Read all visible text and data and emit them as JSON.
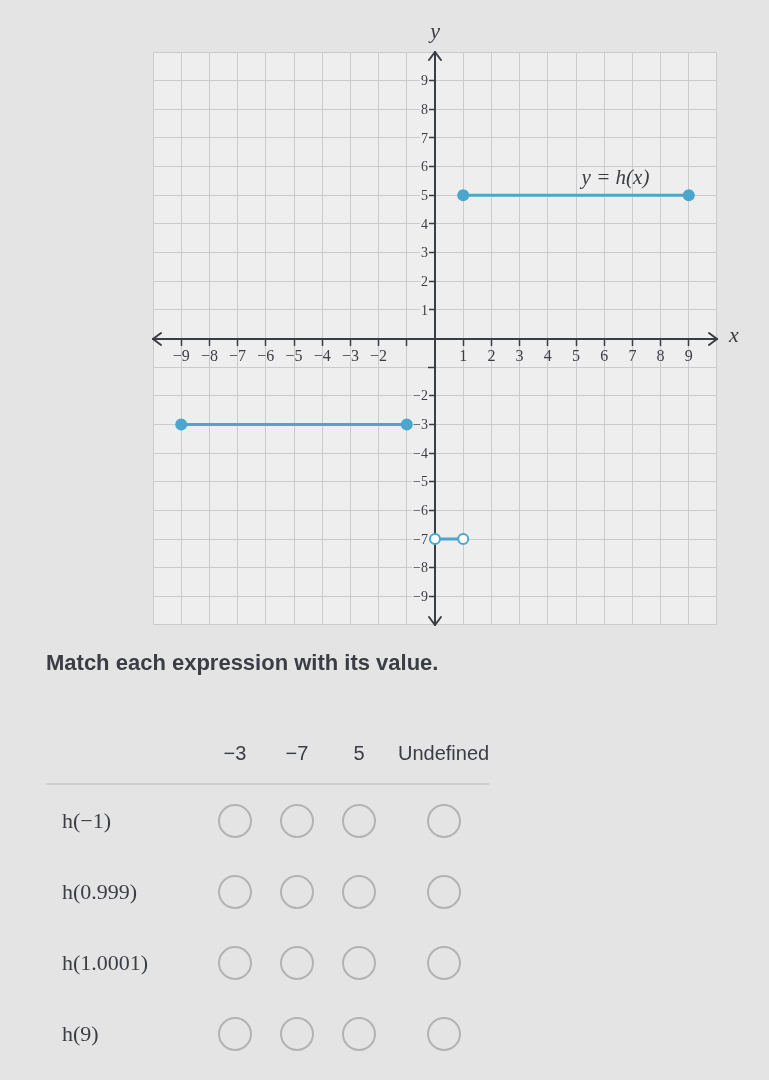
{
  "chart_data": [
    {
      "type": "line",
      "xlabel": "x",
      "ylabel": "y",
      "xlim": [
        -10,
        10
      ],
      "ylim": [
        -10,
        10
      ],
      "xticks": [
        {
          "value": -9,
          "label": "−9"
        },
        {
          "value": -8,
          "label": "−8"
        },
        {
          "value": -7,
          "label": "−7"
        },
        {
          "value": -6,
          "label": "−6"
        },
        {
          "value": -5,
          "label": "−5"
        },
        {
          "value": -4,
          "label": "−4"
        },
        {
          "value": -3,
          "label": "−3"
        },
        {
          "value": -2,
          "label": "−2"
        },
        {
          "value": -1,
          "label": null
        },
        1,
        2,
        3,
        4,
        5,
        6,
        7,
        8,
        9
      ],
      "yticks": [
        {
          "value": -9,
          "label": "−9"
        },
        {
          "value": -8,
          "label": "−8"
        },
        {
          "value": -7,
          "label": "−7"
        },
        {
          "value": -6,
          "label": "−6"
        },
        {
          "value": -5,
          "label": "−5"
        },
        {
          "value": -4,
          "label": "−4"
        },
        {
          "value": -3,
          "label": "−3"
        },
        {
          "value": -2,
          "label": "−2"
        },
        {
          "value": -1,
          "label": null
        },
        1,
        2,
        3,
        4,
        5,
        6,
        7,
        8,
        9
      ],
      "grid": true,
      "marker": "circle",
      "series": [
        {
          "color": "#4aa6cd",
          "x": [
            -9,
            -1
          ],
          "values": [
            -3,
            -3
          ]
        },
        {
          "color": "#4aa6cd",
          "x": [
            0,
            1
          ],
          "values": [
            -7,
            -7
          ],
          "colors": [
            "#ffffff",
            "#ffffff"
          ]
        },
        {
          "color": "#4aa6cd",
          "x": [
            1,
            9
          ],
          "values": [
            5,
            5
          ]
        }
      ],
      "annotations": [
        "y = h(x)"
      ]
    },
    {
      "type": "other",
      "title": "Match each expression with its value.",
      "categories": [
        "−3",
        "−7",
        "5",
        "Undefined"
      ],
      "y_categories": [
        "h(−1)",
        "h(0.999)",
        "h(1.0001)",
        "h(9)"
      ]
    }
  ]
}
